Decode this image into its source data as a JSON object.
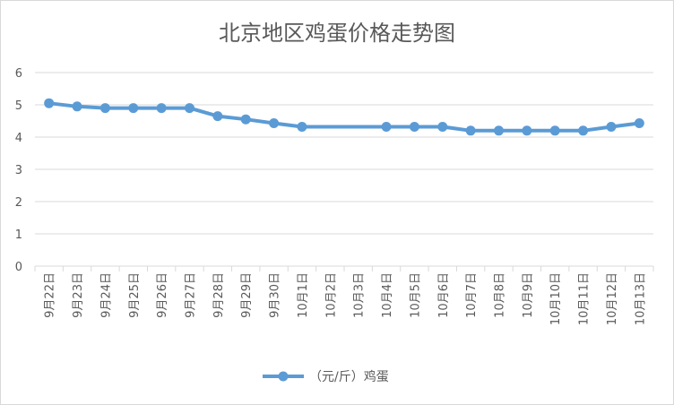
{
  "chart_data": {
    "type": "line",
    "title": "北京地区鸡蛋价格走势图",
    "xlabel": "",
    "ylabel": "",
    "categories": [
      "9月22日",
      "9月23日",
      "9月24日",
      "9月25日",
      "9月26日",
      "9月27日",
      "9月28日",
      "9月29日",
      "9月30日",
      "10月1日",
      "10月2日",
      "10月3日",
      "10月4日",
      "10月5日",
      "10月6日",
      "10月7日",
      "10月8日",
      "10月9日",
      "10月10日",
      "10月11日",
      "10月12日",
      "10月13日"
    ],
    "series": [
      {
        "name": "（元/斤）鸡蛋",
        "color": "#5b9bd5",
        "values": [
          5.05,
          4.95,
          4.9,
          4.9,
          4.9,
          4.9,
          4.65,
          4.55,
          4.43,
          4.32,
          null,
          null,
          4.32,
          4.32,
          4.32,
          4.2,
          4.2,
          4.2,
          4.2,
          4.2,
          4.32,
          4.43
        ]
      }
    ],
    "ylim": [
      0,
      6
    ],
    "yticks": [
      "0",
      "1",
      "2",
      "3",
      "4",
      "5",
      "6"
    ],
    "grid": true,
    "legend": "bottom"
  }
}
